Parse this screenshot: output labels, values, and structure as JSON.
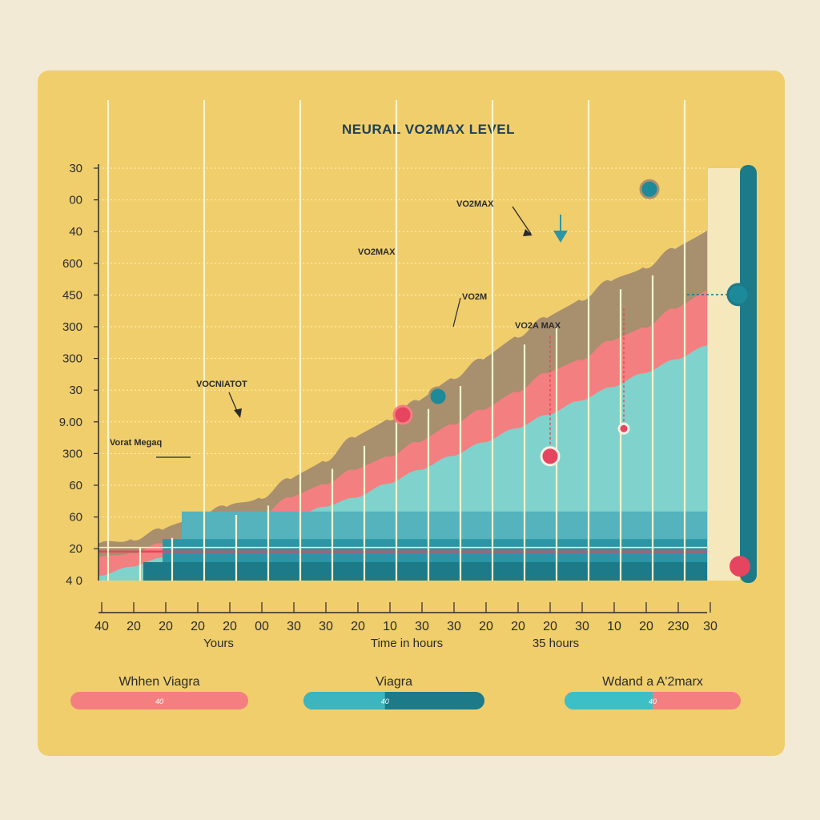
{
  "chart_data": {
    "type": "area",
    "title": "NEURAL VO2MAX LEVEL",
    "y_tick_labels": [
      "30",
      "00",
      "40",
      "600",
      "450",
      "300",
      "300",
      "30",
      "9.00",
      "300",
      "60",
      "60",
      "20",
      "4 0"
    ],
    "x_tick_labels": [
      "40",
      "20",
      "20",
      "20",
      "20",
      "00",
      "30",
      "30",
      "20",
      "10",
      "30",
      "30",
      "20",
      "20",
      "20",
      "30",
      "10",
      "20",
      "230",
      "30"
    ],
    "x_labels": [
      "Yours",
      "Time in hours",
      "35 hours"
    ],
    "x": [
      0,
      1,
      2,
      3,
      4,
      5,
      6,
      7,
      8,
      9,
      10,
      11,
      12,
      13,
      14,
      15,
      16,
      17,
      18,
      19
    ],
    "series": [
      {
        "name": "Vo2max",
        "color": "#a88f6e",
        "values": [
          8,
          9,
          11,
          14,
          16,
          18,
          22,
          26,
          31,
          35,
          39,
          44,
          48,
          53,
          57,
          61,
          65,
          68,
          72,
          76
        ]
      },
      {
        "name": "Viagra",
        "color": "#f47f80",
        "values": [
          5,
          6,
          8,
          10,
          12,
          14,
          18,
          21,
          24,
          27,
          30,
          34,
          37,
          41,
          45,
          48,
          52,
          55,
          59,
          63
        ]
      },
      {
        "name": "Vo2max level",
        "color": "#7fd3cc",
        "values": [
          1,
          3,
          5,
          7,
          9,
          11,
          13,
          16,
          18,
          21,
          24,
          27,
          30,
          33,
          36,
          39,
          42,
          45,
          48,
          51
        ]
      }
    ],
    "bands": [
      {
        "from": 0,
        "to": 15,
        "color": "#54b3bd"
      },
      {
        "from": 0,
        "to": 9,
        "color": "#2a96a5"
      },
      {
        "from": 0,
        "to": 4,
        "color": "#1c7a89"
      }
    ],
    "markers": [
      {
        "name": "coral-point-1",
        "x": 9.5,
        "y": 36,
        "color": "#e6455f",
        "outline": "#f47f80"
      },
      {
        "name": "teal-point-1",
        "x": 10.6,
        "y": 40,
        "color": "#1c8a98",
        "outline": "#a88f6e"
      },
      {
        "name": "coral-point-2",
        "x": 14.1,
        "y": 27,
        "color": "#e6455f",
        "outline": "#f6f1e4"
      },
      {
        "name": "coral-point-3",
        "x": 16.4,
        "y": 33,
        "color": "#e6455f",
        "outline": "#f6f1e4"
      },
      {
        "name": "teal-point-2",
        "x": 17.2,
        "y": 85,
        "color": "#1c8a98",
        "outline": "#a88f6e"
      }
    ],
    "annotations": [
      "VO2MAX",
      "VO2MAX",
      "VO2M",
      "VO2A MAX",
      "VOCNIATOT",
      "Vorat Megaq"
    ],
    "ylim": [
      0,
      100
    ],
    "slider": {
      "level_a": 0.69,
      "level_b": 0.04
    }
  },
  "legend": [
    {
      "label": "Whhen Viagra",
      "bar_text": "40",
      "colors": [
        "#f47f80"
      ],
      "split": 1.0
    },
    {
      "label": "Viagra",
      "bar_text": "40",
      "colors": [
        "#3cb5be",
        "#1c7a89"
      ],
      "split": 0.45
    },
    {
      "label": "Wdand a A'2marx",
      "bar_text": "40",
      "colors": [
        "#3cc0c6",
        "#f47f80"
      ],
      "split": 0.5
    }
  ],
  "colors": {
    "panel": "#f0ce6c",
    "background": "#f3ead6",
    "grid": "#fff7d6",
    "axis": "#2b2b2b"
  }
}
